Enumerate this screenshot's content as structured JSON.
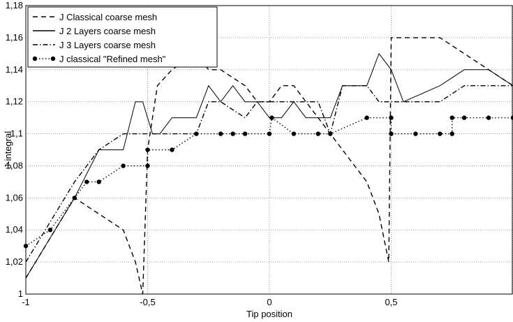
{
  "chart_data": {
    "type": "line",
    "title": "",
    "xlabel": "Tip position",
    "ylabel": "J-integral",
    "xlim": [
      -1,
      1
    ],
    "ylim": [
      1,
      1.18
    ],
    "grid": true,
    "legend_position": "top-left",
    "xticks": [
      -1,
      -0.5,
      0,
      0.5,
      1
    ],
    "xtick_labels": [
      "-1",
      "-0,5",
      "0",
      "0,5",
      ""
    ],
    "yticks": [
      1,
      1.02,
      1.04,
      1.06,
      1.08,
      1.1,
      1.12,
      1.14,
      1.16,
      1.18
    ],
    "ytick_labels": [
      "1",
      "1,02",
      "1,04",
      "1,06",
      "1,08",
      "1,1",
      "1,12",
      "1,14",
      "1,16",
      "1,18"
    ],
    "series": [
      {
        "name": "J Classical coarse mesh",
        "style": "dashed",
        "color": "#000000",
        "x": [
          -1,
          -0.8,
          -0.6,
          -0.55,
          -0.52,
          -0.5,
          -0.46,
          -0.4,
          -0.3,
          -0.25,
          -0.2,
          -0.1,
          -0.05,
          0,
          0.05,
          0.1,
          0.15,
          0.2,
          0.25,
          0.3,
          0.4,
          0.45,
          0.49,
          0.5,
          0.55,
          0.7,
          0.8,
          1
        ],
        "y": [
          1.01,
          1.06,
          1.04,
          1.02,
          1.0,
          1.09,
          1.13,
          1.14,
          1.15,
          1.14,
          1.14,
          1.13,
          1.12,
          1.12,
          1.13,
          1.13,
          1.12,
          1.11,
          1.1,
          1.09,
          1.07,
          1.05,
          1.02,
          1.16,
          1.16,
          1.16,
          1.15,
          1.13
        ]
      },
      {
        "name": "J 2 Layers coarse mesh",
        "style": "solid",
        "color": "#000000",
        "x": [
          -1,
          -0.8,
          -0.7,
          -0.65,
          -0.6,
          -0.55,
          -0.52,
          -0.48,
          -0.45,
          -0.4,
          -0.3,
          -0.25,
          -0.2,
          -0.15,
          -0.1,
          -0.05,
          0,
          0.05,
          0.1,
          0.15,
          0.2,
          0.25,
          0.3,
          0.4,
          0.45,
          0.5,
          0.55,
          0.7,
          0.8,
          0.9,
          1
        ],
        "y": [
          1.01,
          1.06,
          1.09,
          1.09,
          1.09,
          1.12,
          1.12,
          1.1,
          1.1,
          1.11,
          1.11,
          1.13,
          1.12,
          1.13,
          1.12,
          1.12,
          1.11,
          1.11,
          1.12,
          1.11,
          1.11,
          1.11,
          1.13,
          1.13,
          1.15,
          1.14,
          1.12,
          1.13,
          1.14,
          1.14,
          1.13
        ]
      },
      {
        "name": "J 3 Layers coarse mesh",
        "style": "dashdot",
        "color": "#000000",
        "x": [
          -1,
          -0.8,
          -0.7,
          -0.6,
          -0.5,
          -0.3,
          -0.25,
          -0.2,
          -0.1,
          -0.05,
          0,
          0.1,
          0.2,
          0.25,
          0.3,
          0.4,
          0.45,
          0.5,
          0.55,
          0.7,
          0.8,
          1
        ],
        "y": [
          1.02,
          1.07,
          1.09,
          1.1,
          1.1,
          1.1,
          1.12,
          1.12,
          1.11,
          1.12,
          1.12,
          1.12,
          1.12,
          1.1,
          1.13,
          1.13,
          1.12,
          1.12,
          1.12,
          1.12,
          1.13,
          1.13
        ]
      },
      {
        "name": "J classical \"Refined mesh\"",
        "style": "dotted-markers",
        "color": "#000000",
        "x": [
          -1,
          -0.9,
          -0.8,
          -0.75,
          -0.7,
          -0.6,
          -0.5,
          -0.5,
          -0.4,
          -0.3,
          -0.2,
          -0.15,
          -0.1,
          0,
          0.01,
          0.1,
          0.2,
          0.25,
          0.4,
          0.5,
          0.5,
          0.6,
          0.7,
          0.75,
          0.75,
          0.8,
          0.9,
          1
        ],
        "y": [
          1.03,
          1.04,
          1.06,
          1.07,
          1.07,
          1.08,
          1.08,
          1.09,
          1.09,
          1.1,
          1.1,
          1.1,
          1.1,
          1.1,
          1.11,
          1.1,
          1.1,
          1.1,
          1.11,
          1.11,
          1.1,
          1.1,
          1.1,
          1.1,
          1.11,
          1.11,
          1.11,
          1.11
        ]
      }
    ]
  }
}
